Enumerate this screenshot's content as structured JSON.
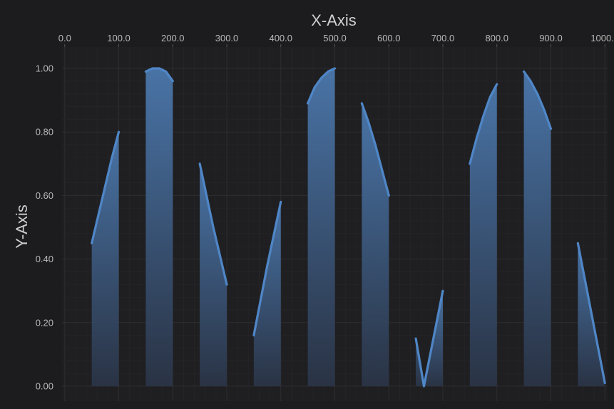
{
  "chart_data": {
    "type": "area",
    "xlabel": "X-Axis",
    "ylabel": "Y-Axis",
    "xlim": [
      -5,
      1005
    ],
    "ylim": [
      0,
      1
    ],
    "x_ticks": [
      "0.0",
      "100.0",
      "200.0",
      "300.0",
      "400.0",
      "500.0",
      "600.0",
      "700.0",
      "800.0",
      "900.0",
      "1000.0"
    ],
    "y_ticks": [
      "0.00",
      "0.20",
      "0.40",
      "0.60",
      "0.80",
      "1.00"
    ],
    "x_axis_position": "top",
    "grid": true,
    "colors": {
      "line": "#4f86c6",
      "fill_top": "#4b78ad",
      "fill_bottom": "#2a3446",
      "background": "#1c1c1e",
      "grid_major": "#2e2e31",
      "grid_minor": "#242427"
    },
    "segments": [
      {
        "x": [
          50,
          62.5,
          75,
          87.5,
          100
        ],
        "y": [
          0.45,
          0.54,
          0.63,
          0.72,
          0.8
        ]
      },
      {
        "x": [
          150,
          162.5,
          175,
          187.5,
          200
        ],
        "y": [
          0.99,
          1.0,
          1.0,
          0.99,
          0.96
        ]
      },
      {
        "x": [
          250,
          262.5,
          275,
          287.5,
          300
        ],
        "y": [
          0.7,
          0.6,
          0.5,
          0.41,
          0.32
        ]
      },
      {
        "x": [
          350,
          362.5,
          375,
          387.5,
          400
        ],
        "y": [
          0.16,
          0.27,
          0.38,
          0.48,
          0.58
        ]
      },
      {
        "x": [
          450,
          462.5,
          475,
          487.5,
          500
        ],
        "y": [
          0.89,
          0.94,
          0.97,
          0.99,
          1.0
        ]
      },
      {
        "x": [
          550,
          562.5,
          575,
          587.5,
          600
        ],
        "y": [
          0.89,
          0.83,
          0.76,
          0.68,
          0.6
        ]
      },
      {
        "x": [
          650,
          665,
          700
        ],
        "y": [
          0.15,
          0.0,
          0.3
        ]
      },
      {
        "x": [
          750,
          762.5,
          775,
          787.5,
          800
        ],
        "y": [
          0.7,
          0.78,
          0.85,
          0.91,
          0.95
        ]
      },
      {
        "x": [
          850,
          862.5,
          875,
          887.5,
          900
        ],
        "y": [
          0.99,
          0.96,
          0.92,
          0.87,
          0.81
        ]
      },
      {
        "x": [
          950,
          962.5,
          975,
          987.5,
          1000
        ],
        "y": [
          0.45,
          0.34,
          0.23,
          0.12,
          0.01
        ]
      }
    ]
  }
}
